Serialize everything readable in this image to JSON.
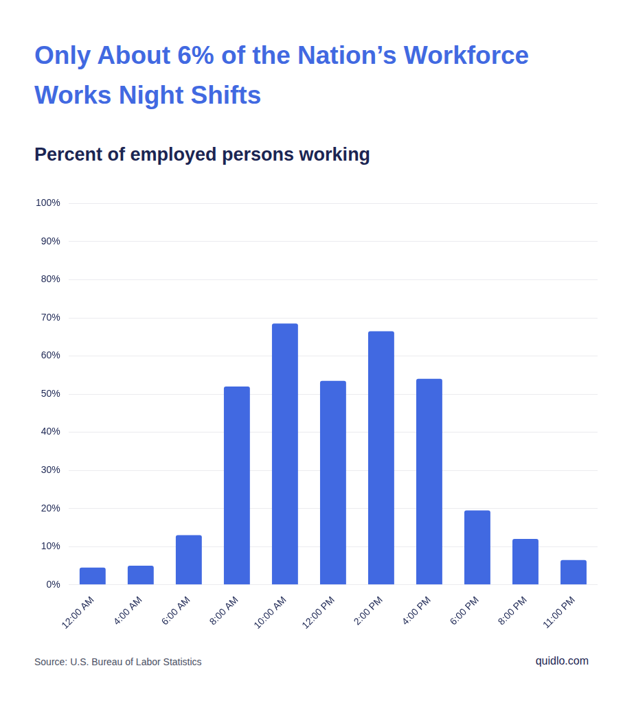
{
  "chart_data": {
    "type": "bar",
    "title": "Only About 6% of the Nation’s Workforce Works Night Shifts",
    "subtitle": "Percent of employed persons working",
    "categories": [
      "12:00 AM",
      "4:00 AM",
      "6:00 AM",
      "8:00 AM",
      "10:00 AM",
      "12:00 PM",
      "2:00 PM",
      "4:00 PM",
      "6:00 PM",
      "8:00 PM",
      "11:00 PM"
    ],
    "values": [
      4.5,
      5,
      13,
      52,
      68.5,
      53.5,
      66.5,
      54,
      19.5,
      12,
      6.5
    ],
    "color": "#4169e1",
    "ylim": [
      0,
      100
    ],
    "yticks": [
      {
        "value": 0,
        "label": "0%"
      },
      {
        "value": 10,
        "label": "10%"
      },
      {
        "value": 20,
        "label": "20%"
      },
      {
        "value": 30,
        "label": "30%"
      },
      {
        "value": 40,
        "label": "40%"
      },
      {
        "value": 50,
        "label": "50%"
      },
      {
        "value": 60,
        "label": "60%"
      },
      {
        "value": 70,
        "label": "70%"
      },
      {
        "value": 80,
        "label": "80%"
      },
      {
        "value": 90,
        "label": "90%"
      },
      {
        "value": 100,
        "label": "100%"
      }
    ],
    "grid": true,
    "source": "Source: U.S. Bureau of Labor Statistics",
    "credit": "quidlo.com"
  }
}
